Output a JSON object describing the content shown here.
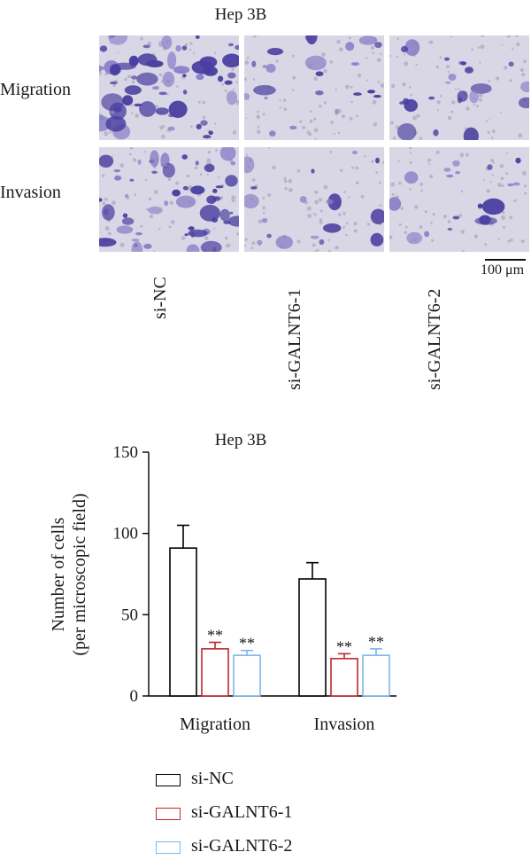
{
  "figure": {
    "panel_title": "Hep 3B",
    "rows": [
      "Migration",
      "Invasion"
    ],
    "conditions": [
      "si-NC",
      "si-GALNT6-1",
      "si-GALNT6-2"
    ],
    "scale_bar_label": "100 μm",
    "micrograph_colors": {
      "background": "#d9d6e6",
      "stain": "#4a3fa0",
      "stain_light": "#8a82c8"
    }
  },
  "chart_data": {
    "type": "bar",
    "title": "Hep 3B",
    "ylabel": "Number of cells (per microscopic field)",
    "ylabel_lines": [
      "Number of cells",
      "(per microscopic field)"
    ],
    "categories": [
      "Migration",
      "Invasion"
    ],
    "ylim": [
      0,
      150
    ],
    "yticks": [
      0,
      50,
      100,
      150
    ],
    "series": [
      {
        "name": "si-NC",
        "values": [
          91,
          72
        ],
        "errors": [
          14,
          10
        ],
        "color": "#000000",
        "annotations": [
          "",
          ""
        ]
      },
      {
        "name": "si-GALNT6-1",
        "values": [
          29,
          23
        ],
        "errors": [
          4,
          3
        ],
        "color": "#c0272d",
        "annotations": [
          "**",
          "**"
        ]
      },
      {
        "name": "si-GALNT6-2",
        "values": [
          25,
          25
        ],
        "errors": [
          3,
          4
        ],
        "color": "#7fb6e6",
        "annotations": [
          "**",
          "**"
        ]
      }
    ],
    "legend_position": "bottom-left"
  }
}
